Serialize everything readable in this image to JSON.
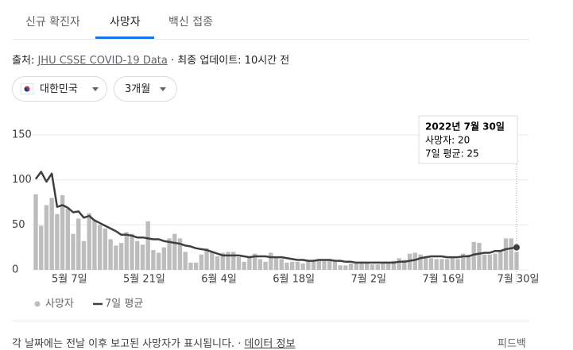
{
  "tabs": [
    "신규 확진자",
    "사망자",
    "백신 접종"
  ],
  "source": {
    "prefix": "출처:",
    "link": "JHU CSSE COVID-19 Data",
    "updated": "· 최종 업데이트: 10시간 전"
  },
  "filters": [
    "대한민국",
    "3개월"
  ],
  "chart_data": {
    "type": "bar_line",
    "categories": [
      null,
      null,
      null,
      null,
      null,
      null,
      "5월 7일",
      null,
      null,
      null,
      null,
      null,
      null,
      null,
      null,
      null,
      null,
      null,
      null,
      null,
      "5월 21일",
      null,
      null,
      null,
      null,
      null,
      null,
      null,
      null,
      null,
      null,
      null,
      null,
      null,
      "6월 4일",
      null,
      null,
      null,
      null,
      null,
      null,
      null,
      null,
      null,
      null,
      null,
      null,
      null,
      "6월 18일",
      null,
      null,
      null,
      null,
      null,
      null,
      null,
      null,
      null,
      null,
      null,
      null,
      null,
      "7월 2일",
      null,
      null,
      null,
      null,
      null,
      null,
      null,
      null,
      null,
      null,
      null,
      null,
      null,
      "7월 16일",
      null,
      null,
      null,
      null,
      null,
      null,
      null,
      null,
      null,
      null,
      null,
      null,
      null,
      "7월 30일"
    ],
    "series": [
      {
        "name": "사망자",
        "type": "bar",
        "color": "#bdbdbd",
        "values": [
          84,
          49,
          72,
          80,
          62,
          83,
          68,
          40,
          57,
          32,
          63,
          55,
          50,
          46,
          34,
          27,
          30,
          42,
          40,
          32,
          28,
          54,
          22,
          19,
          25,
          35,
          40,
          35,
          20,
          8,
          8,
          17,
          24,
          20,
          15,
          19,
          20,
          20,
          14,
          9,
          14,
          18,
          12,
          9,
          19,
          13,
          12,
          8,
          9,
          9,
          7,
          10,
          10,
          11,
          10,
          11,
          9,
          5,
          5,
          7,
          8,
          9,
          8,
          6,
          6,
          7,
          9,
          10,
          13,
          11,
          18,
          19,
          17,
          15,
          13,
          12,
          12,
          12,
          13,
          12,
          18,
          17,
          31,
          30,
          17,
          17,
          18,
          20,
          35,
          35,
          20
        ]
      },
      {
        "name": "7일 평균",
        "type": "line",
        "color": "#3c4043",
        "values": [
          101,
          109,
          98,
          107,
          70,
          72,
          69,
          64,
          65,
          58,
          60,
          55,
          52,
          49,
          46,
          43,
          39,
          39,
          38,
          36,
          36,
          35,
          34,
          34,
          32,
          31,
          30,
          29,
          27,
          26,
          24,
          23,
          22,
          20,
          18,
          16,
          16,
          16,
          16,
          15,
          14,
          15,
          15,
          15,
          14,
          14,
          14,
          13,
          12,
          11,
          11,
          10,
          10,
          11,
          11,
          11,
          10,
          10,
          9,
          9,
          8,
          8,
          8,
          8,
          8,
          8,
          8,
          8,
          9,
          9,
          10,
          11,
          13,
          14,
          15,
          15,
          15,
          14,
          14,
          14,
          15,
          15,
          17,
          18,
          19,
          19,
          21,
          21,
          23,
          24,
          25
        ]
      }
    ],
    "ylim": [
      0,
      150
    ],
    "yticks": [
      0,
      50,
      100,
      150
    ],
    "grid": true,
    "tooltip": {
      "title": "2022년 7월 30일",
      "lines": [
        "사망자: 20",
        "7일 평균: 25"
      ]
    }
  },
  "footer": {
    "note": "각 날짜에는 전날 이후 보고된 사망자가 표시됩니다. ·",
    "link": "데이터 정보",
    "feedback": "피드백"
  }
}
